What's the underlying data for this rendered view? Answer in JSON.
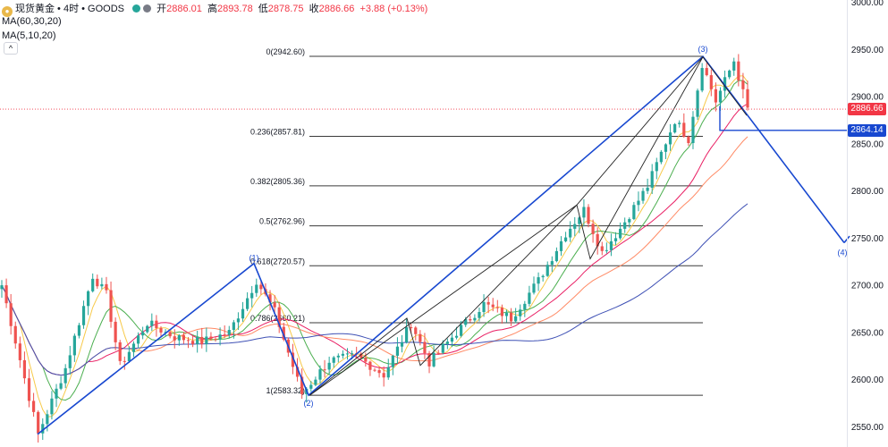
{
  "header": {
    "symbol": "现货黄金 • 4时 • GOODS",
    "open_label": "开",
    "open": "2886.01",
    "high_label": "高",
    "high": "2893.78",
    "low_label": "低",
    "low": "2878.75",
    "close_label": "收",
    "close": "2886.66",
    "change": "+3.88 (+0.13%)",
    "ma1": "MA(60,30,20)",
    "ma2": "MA(5,10,20)",
    "collapse": "^"
  },
  "price_badges": {
    "last": "2886.66",
    "target": "2864.14"
  },
  "colors": {
    "up": "#26a69a",
    "down": "#ef5350",
    "wave": "#1848d0",
    "last_price": "#f23645",
    "target": "#1848d0"
  },
  "chart_data": {
    "type": "candlestick",
    "timeframe": "4时",
    "y_axis": {
      "ticks": [
        2550,
        2600,
        2650,
        2700,
        2750,
        2800,
        2850,
        2900,
        2950,
        3000
      ],
      "tick_labels": [
        "2550.00",
        "2600.00",
        "2650.00",
        "2700.00",
        "2750.00",
        "2800.00",
        "2850.00",
        "2900.00",
        "2950.00",
        "3000.00"
      ]
    },
    "fibonacci": [
      {
        "ratio": 0,
        "price": 2942.6,
        "label": "0(2942.60)"
      },
      {
        "ratio": 0.236,
        "price": 2857.81,
        "label": "0.236(2857.81)"
      },
      {
        "ratio": 0.382,
        "price": 2805.36,
        "label": "0.382(2805.36)"
      },
      {
        "ratio": 0.5,
        "price": 2762.96,
        "label": "0.5(2762.96)"
      },
      {
        "ratio": 0.618,
        "price": 2720.57,
        "label": "0.618(2720.57)"
      },
      {
        "ratio": 0.786,
        "price": 2660.21,
        "label": "0.786(2660.21)"
      },
      {
        "ratio": 1,
        "price": 2583.32,
        "label": "1(2583.32)"
      }
    ],
    "waves": [
      {
        "label": "",
        "price": 2542
      },
      {
        "label": "(1)",
        "price": 2723
      },
      {
        "label": "(2)",
        "price": 2583.32
      },
      {
        "label": "(3)",
        "price": 2942.6
      },
      {
        "label": "(4)",
        "price": 2745
      }
    ],
    "anchor_points": [
      {
        "bar": 0,
        "price": 2700
      },
      {
        "bar": 8,
        "price": 2542
      },
      {
        "bar": 14,
        "price": 2612
      },
      {
        "bar": 20,
        "price": 2710
      },
      {
        "bar": 23,
        "price": 2690
      },
      {
        "bar": 26,
        "price": 2615
      },
      {
        "bar": 32,
        "price": 2660
      },
      {
        "bar": 38,
        "price": 2645
      },
      {
        "bar": 44,
        "price": 2640
      },
      {
        "bar": 50,
        "price": 2650
      },
      {
        "bar": 56,
        "price": 2705
      },
      {
        "bar": 60,
        "price": 2672
      },
      {
        "bar": 66,
        "price": 2585
      },
      {
        "bar": 72,
        "price": 2620
      },
      {
        "bar": 78,
        "price": 2625
      },
      {
        "bar": 84,
        "price": 2605
      },
      {
        "bar": 90,
        "price": 2660
      },
      {
        "bar": 94,
        "price": 2618
      },
      {
        "bar": 100,
        "price": 2650
      },
      {
        "bar": 106,
        "price": 2680
      },
      {
        "bar": 112,
        "price": 2665
      },
      {
        "bar": 118,
        "price": 2705
      },
      {
        "bar": 124,
        "price": 2755
      },
      {
        "bar": 128,
        "price": 2780
      },
      {
        "bar": 132,
        "price": 2735
      },
      {
        "bar": 136,
        "price": 2760
      },
      {
        "bar": 142,
        "price": 2805
      },
      {
        "bar": 148,
        "price": 2875
      },
      {
        "bar": 151,
        "price": 2855
      },
      {
        "bar": 154,
        "price": 2935
      },
      {
        "bar": 157,
        "price": 2895
      },
      {
        "bar": 161,
        "price": 2938
      },
      {
        "bar": 164,
        "price": 2886.66
      }
    ],
    "bar_count": 165,
    "moving_averages": [
      {
        "name": "MA5",
        "color": "#f7c948"
      },
      {
        "name": "MA10",
        "color": "#4caf50"
      },
      {
        "name": "MA20",
        "color": "#e91e63"
      },
      {
        "name": "MA30",
        "color": "#ff8a65"
      },
      {
        "name": "MA60",
        "color": "#3f51b5"
      }
    ]
  }
}
